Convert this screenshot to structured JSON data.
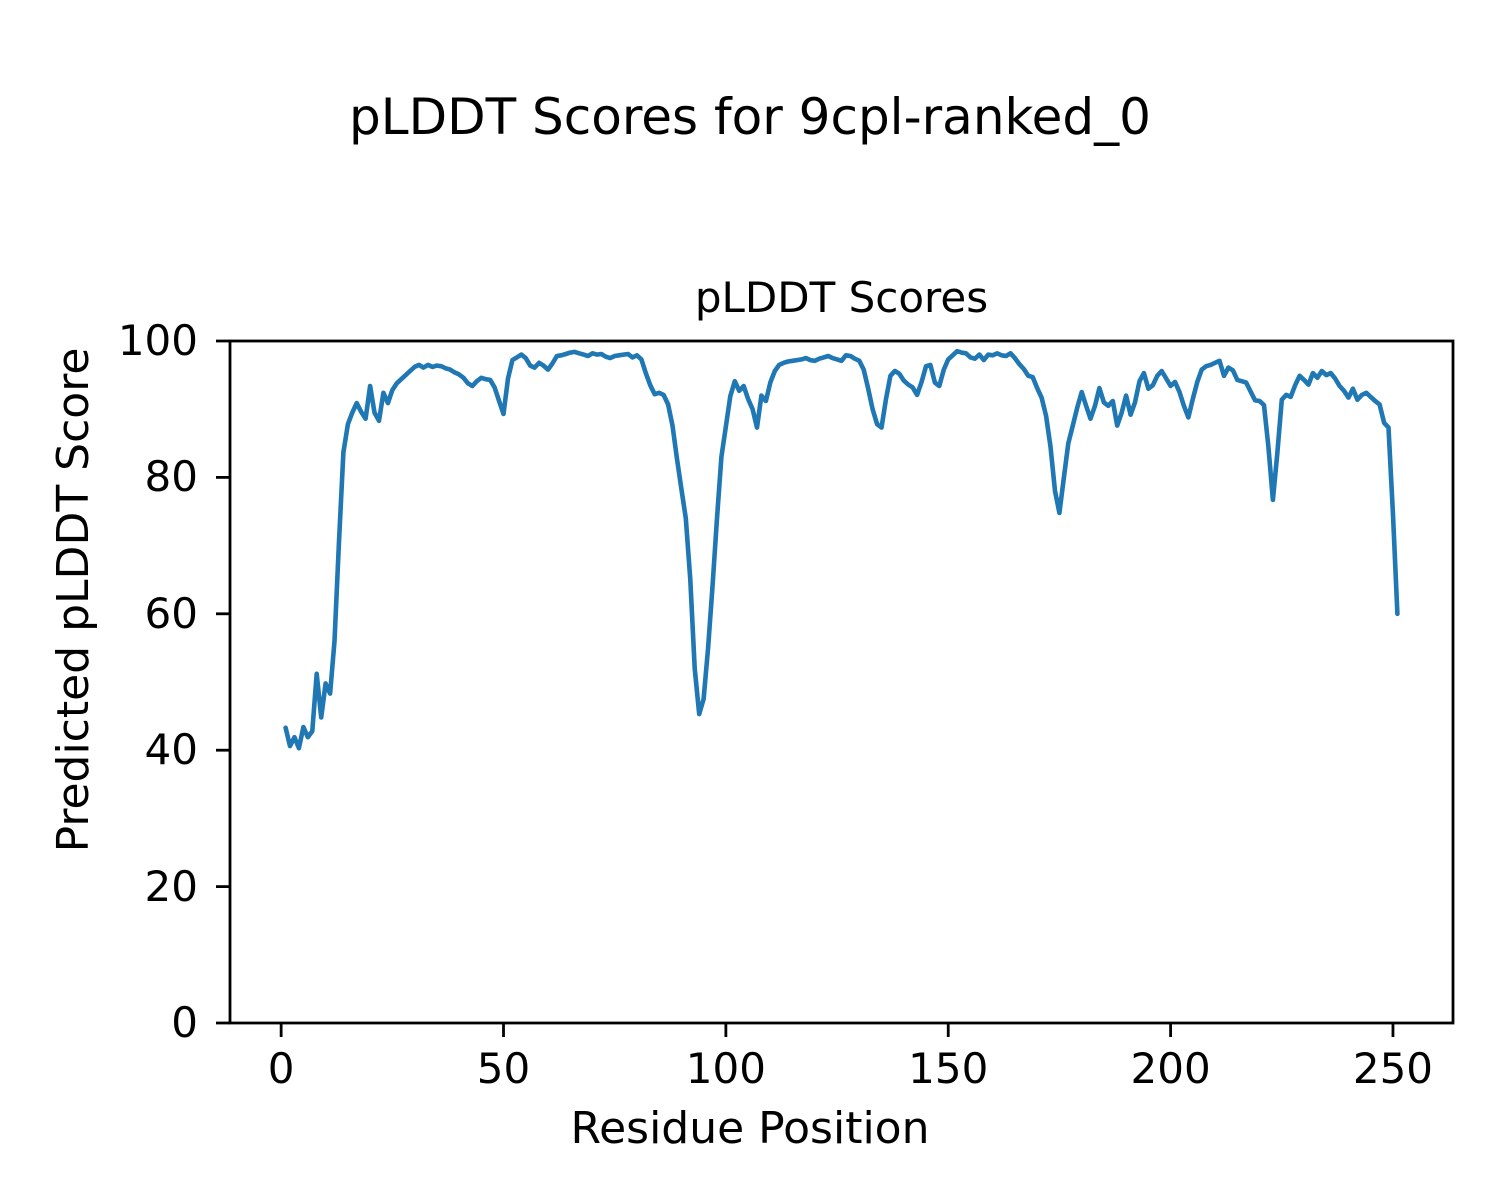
{
  "figure": {
    "suptitle": "pLDDT Scores for 9cpl-ranked_0",
    "background": "#ffffff",
    "text_color": "#000000"
  },
  "chart_data": {
    "type": "line",
    "title": "pLDDT Scores",
    "xlabel": "Residue Position",
    "ylabel": "Predicted pLDDT Score",
    "line_color": "#1f77b4",
    "axis_color": "#000000",
    "grid": false,
    "legend": "none",
    "x_ticks": [
      0,
      50,
      100,
      150,
      200,
      250
    ],
    "y_ticks": [
      0,
      20,
      40,
      60,
      80,
      100
    ],
    "xlim": [
      -11.5,
      263.5
    ],
    "ylim": [
      0,
      100
    ],
    "x_start": 1,
    "x_step": 1,
    "values": [
      43.3,
      40.6,
      41.9,
      40.3,
      43.4,
      41.9,
      42.8,
      51.2,
      44.8,
      49.8,
      48.3,
      56.0,
      70.6,
      83.7,
      87.8,
      89.5,
      90.9,
      89.6,
      88.6,
      93.4,
      89.5,
      88.3,
      92.4,
      90.9,
      92.8,
      93.8,
      94.4,
      95.0,
      95.6,
      96.2,
      96.5,
      96.1,
      96.5,
      96.2,
      96.4,
      96.3,
      96.0,
      95.8,
      95.4,
      95.1,
      94.6,
      93.8,
      93.4,
      94.1,
      94.6,
      94.4,
      94.3,
      93.2,
      91.2,
      89.3,
      94.5,
      97.2,
      97.6,
      98.0,
      97.5,
      96.4,
      96.1,
      96.8,
      96.4,
      95.8,
      96.7,
      97.8,
      97.9,
      98.1,
      98.3,
      98.4,
      98.2,
      98.0,
      97.8,
      98.2,
      98.0,
      98.1,
      97.7,
      97.5,
      97.8,
      97.9,
      98.0,
      98.1,
      97.6,
      97.9,
      97.3,
      95.3,
      93.5,
      92.2,
      92.4,
      92.1,
      90.7,
      87.6,
      82.7,
      78.3,
      74.0,
      65.0,
      52.0,
      45.3,
      47.5,
      55.0,
      64.0,
      74.0,
      83.0,
      87.5,
      91.9,
      94.1,
      92.7,
      93.4,
      91.5,
      90.0,
      87.3,
      92.0,
      91.2,
      93.9,
      95.6,
      96.5,
      96.8,
      97.0,
      97.1,
      97.2,
      97.3,
      97.5,
      97.2,
      97.1,
      97.4,
      97.6,
      97.8,
      97.5,
      97.3,
      97.1,
      97.9,
      97.8,
      97.4,
      97.1,
      95.8,
      93.0,
      90.0,
      87.8,
      87.3,
      91.5,
      94.9,
      95.6,
      95.2,
      94.2,
      93.6,
      93.2,
      92.1,
      94.0,
      96.3,
      96.5,
      93.9,
      93.4,
      95.8,
      97.3,
      97.9,
      98.5,
      98.3,
      98.2,
      97.6,
      97.4,
      98.0,
      97.2,
      98.0,
      97.9,
      98.2,
      97.9,
      97.8,
      98.2,
      97.5,
      96.6,
      95.9,
      94.9,
      94.7,
      93.1,
      91.7,
      89.0,
      84.5,
      78.0,
      74.8,
      80.0,
      85.0,
      87.6,
      90.2,
      92.5,
      90.5,
      88.6,
      90.5,
      93.1,
      91.0,
      90.5,
      91.2,
      87.6,
      89.5,
      92.0,
      89.2,
      91.0,
      94.1,
      95.3,
      93.0,
      93.5,
      94.9,
      95.6,
      94.5,
      93.4,
      94.0,
      92.5,
      90.5,
      88.8,
      91.5,
      94.0,
      95.8,
      96.3,
      96.5,
      96.8,
      97.1,
      94.9,
      96.1,
      95.7,
      94.3,
      94.1,
      93.9,
      92.6,
      91.3,
      91.2,
      90.6,
      84.5,
      76.7,
      83.5,
      91.4,
      92.1,
      91.8,
      93.5,
      94.9,
      94.3,
      93.6,
      95.3,
      94.6,
      95.6,
      95.0,
      95.3,
      94.5,
      93.4,
      92.7,
      91.7,
      93.0,
      91.4,
      92.1,
      92.4,
      91.8,
      91.2,
      90.7,
      88.0,
      87.3,
      74.5,
      60.0
    ]
  }
}
